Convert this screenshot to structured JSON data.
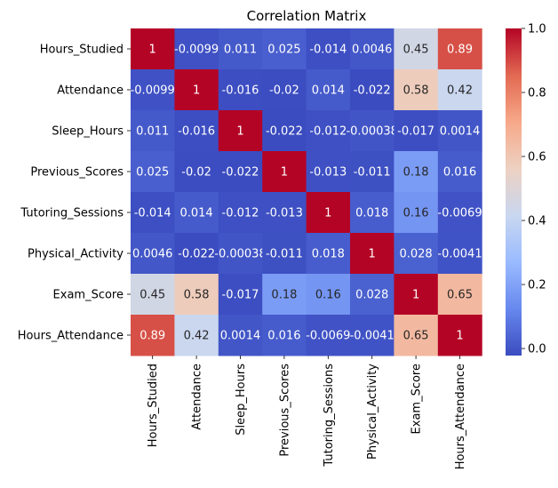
{
  "chart_data": {
    "type": "heatmap",
    "title": "Correlation Matrix",
    "xlabel": "",
    "ylabel": "",
    "row_labels": [
      "Hours_Studied",
      "Attendance",
      "Sleep_Hours",
      "Previous_Scores",
      "Tutoring_Sessions",
      "Physical_Activity",
      "Exam_Score",
      "Hours_Attendance"
    ],
    "col_labels": [
      "Hours_Studied",
      "Attendance",
      "Sleep_Hours",
      "Previous_Scores",
      "Tutoring_Sessions",
      "Physical_Activity",
      "Exam_Score",
      "Hours_Attendance"
    ],
    "values": [
      [
        1,
        -0.0099,
        0.011,
        0.025,
        -0.014,
        0.0046,
        0.45,
        0.89
      ],
      [
        -0.0099,
        1,
        -0.016,
        -0.02,
        0.014,
        -0.022,
        0.58,
        0.42
      ],
      [
        0.011,
        -0.016,
        1,
        -0.022,
        -0.012,
        -0.00038,
        -0.017,
        0.0014
      ],
      [
        0.025,
        -0.02,
        -0.022,
        1,
        -0.013,
        -0.011,
        0.18,
        0.016
      ],
      [
        -0.014,
        0.014,
        -0.012,
        -0.013,
        1,
        0.018,
        0.16,
        -0.0069
      ],
      [
        0.0046,
        -0.022,
        -0.00038,
        -0.011,
        0.018,
        1,
        0.028,
        -0.0041
      ],
      [
        0.45,
        0.58,
        -0.017,
        0.18,
        0.16,
        0.028,
        1,
        0.65
      ],
      [
        0.89,
        0.42,
        0.0014,
        0.016,
        -0.0069,
        -0.0041,
        0.65,
        1
      ]
    ],
    "cell_labels": [
      [
        "1",
        "-0.0099",
        "0.011",
        "0.025",
        "-0.014",
        "0.0046",
        "0.45",
        "0.89"
      ],
      [
        "-0.0099",
        "1",
        "-0.016",
        "-0.02",
        "0.014",
        "-0.022",
        "0.58",
        "0.42"
      ],
      [
        "0.011",
        "-0.016",
        "1",
        "-0.022",
        "-0.012",
        "-0.00038",
        "-0.017",
        "0.0014"
      ],
      [
        "0.025",
        "-0.02",
        "-0.022",
        "1",
        "-0.013",
        "-0.011",
        "0.18",
        "0.016"
      ],
      [
        "-0.014",
        "0.014",
        "-0.012",
        "-0.013",
        "1",
        "0.018",
        "0.16",
        "-0.0069"
      ],
      [
        "0.0046",
        "-0.022",
        "-0.00038",
        "-0.011",
        "0.018",
        "1",
        "0.028",
        "-0.0041"
      ],
      [
        "0.45",
        "0.58",
        "-0.017",
        "0.18",
        "0.16",
        "0.028",
        "1",
        "0.65"
      ],
      [
        "0.89",
        "0.42",
        "0.0014",
        "0.016",
        "-0.0069",
        "-0.0041",
        "0.65",
        "1"
      ]
    ],
    "colormap": "coolwarm",
    "colormap_stops": [
      "#3b4cc0",
      "#6788ee",
      "#9abbff",
      "#c9d7f0",
      "#edd1c2",
      "#f7a889",
      "#e26952",
      "#b40426"
    ],
    "colorbar": {
      "vmin": -0.022,
      "vmax": 1,
      "ticks": [
        0.0,
        0.2,
        0.4,
        0.6,
        0.8,
        1.0
      ],
      "tick_labels": [
        "0.0",
        "0.2",
        "0.4",
        "0.6",
        "0.8",
        "1.0"
      ]
    }
  }
}
